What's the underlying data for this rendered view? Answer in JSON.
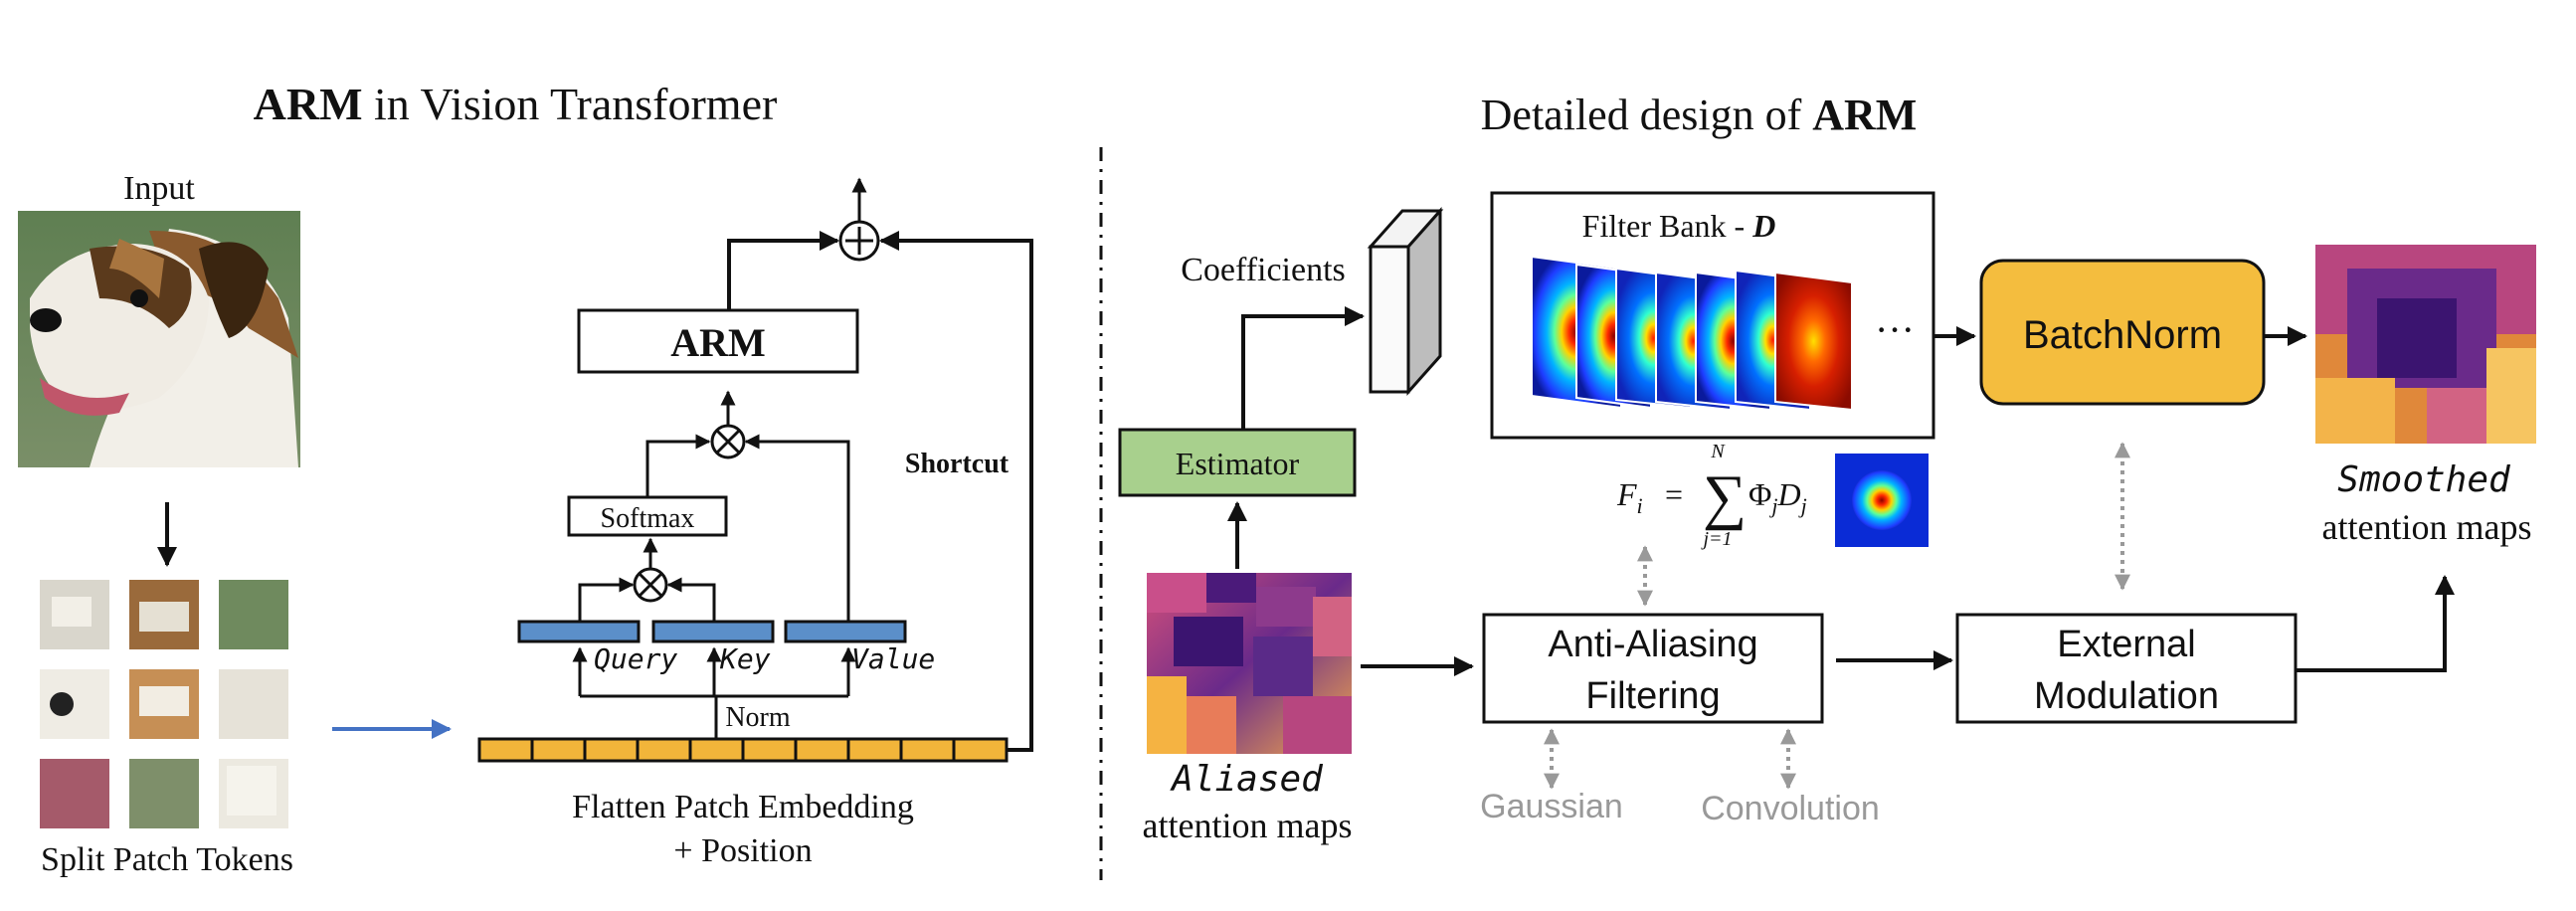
{
  "left_panel": {
    "title_bold": "ARM",
    "title_rest": " in Vision Transformer",
    "input_label": "Input",
    "split_label": "Split Patch Tokens",
    "embedding_label_line1": "Flatten Patch Embedding",
    "embedding_label_line2": "+ Position",
    "norm_label": "Norm",
    "query_label": "Query",
    "key_label": "Key",
    "value_label": "Value",
    "softmax_label": "Softmax",
    "arm_label": "ARM",
    "shortcut_label": "Shortcut",
    "times_symbol": "⊗",
    "plus_symbol": "⊕"
  },
  "right_panel": {
    "title_rest": "Detailed design of ",
    "title_bold": "ARM",
    "coefficients_label": "Coefficients",
    "estimator_label": "Estimator",
    "filter_bank_label": "Filter Bank - ",
    "filter_bank_symbol": "D",
    "ellipsis": "···",
    "batchnorm_label": "BatchNorm",
    "formula_lhs": "F",
    "formula_lhs_sub": "i",
    "formula_eq": "=",
    "formula_sum": "∑",
    "formula_sum_top": "N",
    "formula_sum_bottom": "j=1",
    "formula_rhs": "Φ",
    "formula_rhs_sub1": "j",
    "formula_rhs_d": "D",
    "formula_rhs_sub2": "j",
    "aliased_line1": "Aliased",
    "aliased_line2": "attention maps",
    "anti_aliasing_line1": "Anti-Aliasing",
    "anti_aliasing_line2": "Filtering",
    "external_line1": "External",
    "external_line2": "Modulation",
    "gaussian_label": "Gaussian",
    "convolution_label": "Convolution",
    "smoothed_line1": "Smoothed",
    "smoothed_line2": "attention maps"
  },
  "colors": {
    "estimator_fill": "#a8d08d",
    "batchnorm_fill": "#f4bd3e",
    "token_bar_fill": "#f2b53a",
    "qkv_fill": "#5b8fc9",
    "arrow_blue": "#4472c4",
    "dotted_gray": "#999999"
  }
}
